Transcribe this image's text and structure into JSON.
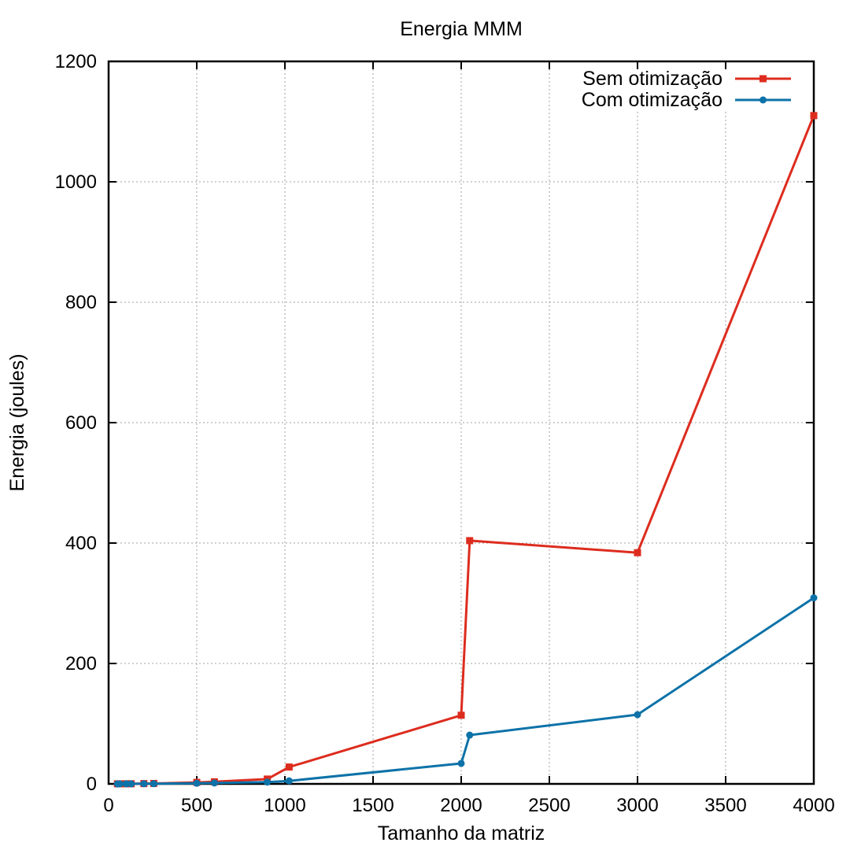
{
  "chart_data": {
    "type": "line",
    "title": "Energia MMM",
    "xlabel": "Tamanho da matriz",
    "ylabel": "Energia (joules)",
    "xlim": [
      0,
      4000
    ],
    "ylim": [
      0,
      1200
    ],
    "xticks": [
      0,
      500,
      1000,
      1500,
      2000,
      2500,
      3000,
      3500,
      4000
    ],
    "yticks": [
      0,
      200,
      400,
      600,
      800,
      1000,
      1200
    ],
    "grid": true,
    "legend_position": "top-right",
    "series": [
      {
        "name": "Sem otimização",
        "color": "#dd2c1e",
        "marker": "square",
        "points": [
          [
            50,
            0.1
          ],
          [
            64,
            0.1
          ],
          [
            100,
            0.2
          ],
          [
            128,
            0.2
          ],
          [
            200,
            0.5
          ],
          [
            256,
            0.7
          ],
          [
            500,
            2.5
          ],
          [
            600,
            3.5
          ],
          [
            900,
            8
          ],
          [
            1024,
            28
          ],
          [
            2000,
            114
          ],
          [
            2048,
            404
          ],
          [
            3000,
            384
          ],
          [
            4000,
            1110
          ]
        ]
      },
      {
        "name": "Com otimização",
        "color": "#0d72a8",
        "marker": "circle",
        "points": [
          [
            50,
            0.05
          ],
          [
            64,
            0.05
          ],
          [
            100,
            0.1
          ],
          [
            128,
            0.1
          ],
          [
            200,
            0.2
          ],
          [
            256,
            0.3
          ],
          [
            500,
            1
          ],
          [
            600,
            1.5
          ],
          [
            900,
            3
          ],
          [
            1024,
            5
          ],
          [
            2000,
            34
          ],
          [
            2048,
            81
          ],
          [
            3000,
            115
          ],
          [
            4000,
            309
          ]
        ]
      }
    ]
  }
}
